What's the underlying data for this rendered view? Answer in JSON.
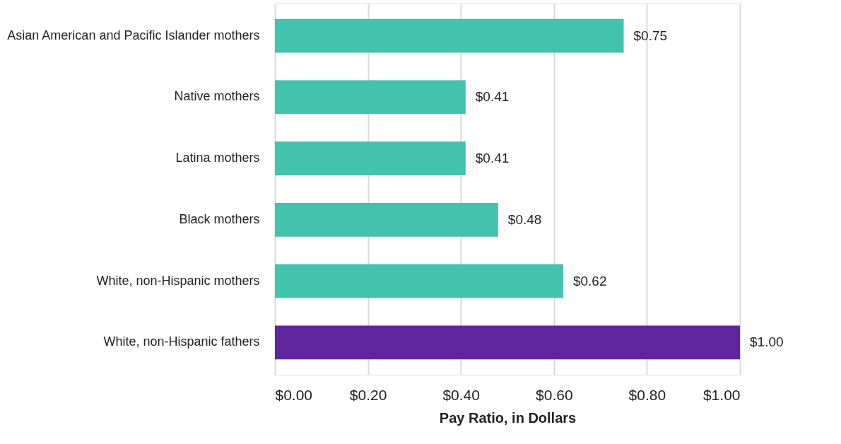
{
  "chart_data": {
    "type": "bar",
    "orientation": "horizontal",
    "categories": [
      "Asian American and Pacific Islander mothers",
      "Native mothers",
      "Latina mothers",
      "Black mothers",
      "White, non-Hispanic mothers",
      "White, non-Hispanic fathers"
    ],
    "values": [
      0.75,
      0.41,
      0.41,
      0.48,
      0.62,
      1.0
    ],
    "colors": [
      "#43c2ad",
      "#43c2ad",
      "#43c2ad",
      "#43c2ad",
      "#43c2ad",
      "#5f259f"
    ],
    "value_labels": [
      "$0.75",
      "$0.41",
      "$0.41",
      "$0.48",
      "$0.62",
      "$1.00"
    ],
    "xlabel": "Pay Ratio, in Dollars",
    "xlim": [
      0,
      1
    ],
    "xticks": [
      {
        "value": 0,
        "label": "$0.00"
      },
      {
        "value": 0.2,
        "label": "$0.20"
      },
      {
        "value": 0.4,
        "label": "$0.40"
      },
      {
        "value": 0.6,
        "label": "$0.60"
      },
      {
        "value": 0.8,
        "label": "$0.80"
      },
      {
        "value": 1,
        "label": "$1.00"
      }
    ],
    "grid": "x",
    "legend": false
  }
}
